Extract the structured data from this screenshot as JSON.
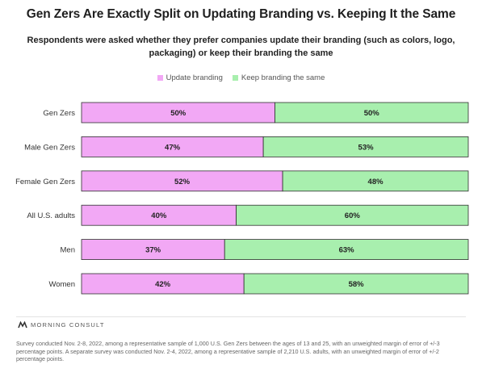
{
  "title": "Gen Zers Are Exactly Split on Updating Branding vs. Keeping It the Same",
  "subtitle": "Respondents were asked whether they prefer companies update their branding (such as colors, logo, packaging) or keep their branding the same",
  "legend": {
    "update_label": "Update branding",
    "keep_label": "Keep branding the same"
  },
  "colors": {
    "update": "#f2a8f5",
    "keep": "#a8efae",
    "stroke": "#2f2f2f"
  },
  "brand": {
    "name": "MORNING CONSULT",
    "icon": "morning-consult-logo-icon"
  },
  "footnote": "Survey conducted Nov. 2-8, 2022, among a representative sample of 1,000 U.S. Gen Zers between the ages of 13 and 25, with an unweighted margin of error of +/-3 percentage points. A separate survey was conducted Nov. 2-4, 2022, among a representative sample of 2,210 U.S. adults, with an unweighted margin of error of +/-2 percentage points.",
  "chart_data": {
    "type": "bar",
    "orientation": "horizontal",
    "stacked": true,
    "categories": [
      "Gen Zers",
      "Male Gen Zers",
      "Female Gen Zers",
      "All U.S. adults",
      "Men",
      "Women"
    ],
    "series": [
      {
        "name": "Update branding",
        "values": [
          50,
          47,
          52,
          40,
          37,
          42
        ]
      },
      {
        "name": "Keep branding the same",
        "values": [
          50,
          53,
          48,
          60,
          63,
          58
        ]
      }
    ],
    "value_labels": [
      [
        "50%",
        "47%",
        "52%",
        "40%",
        "37%",
        "42%"
      ],
      [
        "50%",
        "53%",
        "48%",
        "60%",
        "63%",
        "58%"
      ]
    ],
    "xlim": [
      0,
      100
    ],
    "legend_position": "top-center",
    "grid": false
  }
}
